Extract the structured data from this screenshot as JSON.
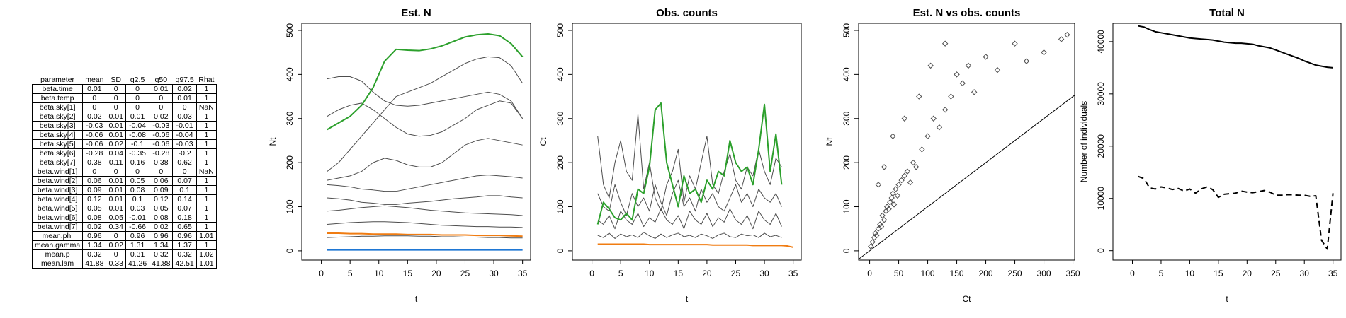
{
  "table": {
    "columns": [
      "parameter",
      "mean",
      "SD",
      "q2.5",
      "q50",
      "q97.5",
      "Rhat"
    ],
    "rows": [
      [
        "beta.time",
        "0.01",
        "0",
        "0",
        "0.01",
        "0.02",
        "1"
      ],
      [
        "beta.temp",
        "0",
        "0",
        "0",
        "0",
        "0.01",
        "1"
      ],
      [
        "beta.sky[1]",
        "0",
        "0",
        "0",
        "0",
        "0",
        "NaN"
      ],
      [
        "beta.sky[2]",
        "0.02",
        "0.01",
        "0.01",
        "0.02",
        "0.03",
        "1"
      ],
      [
        "beta.sky[3]",
        "-0.03",
        "0.01",
        "-0.04",
        "-0.03",
        "-0.01",
        "1"
      ],
      [
        "beta.sky[4]",
        "-0.06",
        "0.01",
        "-0.08",
        "-0.06",
        "-0.04",
        "1"
      ],
      [
        "beta.sky[5]",
        "-0.06",
        "0.02",
        "-0.1",
        "-0.06",
        "-0.03",
        "1"
      ],
      [
        "beta.sky[6]",
        "-0.28",
        "0.04",
        "-0.35",
        "-0.28",
        "-0.2",
        "1"
      ],
      [
        "beta.sky[7]",
        "0.38",
        "0.11",
        "0.16",
        "0.38",
        "0.62",
        "1"
      ],
      [
        "beta.wind[1]",
        "0",
        "0",
        "0",
        "0",
        "0",
        "NaN"
      ],
      [
        "beta.wind[2]",
        "0.06",
        "0.01",
        "0.05",
        "0.06",
        "0.07",
        "1"
      ],
      [
        "beta.wind[3]",
        "0.09",
        "0.01",
        "0.08",
        "0.09",
        "0.1",
        "1"
      ],
      [
        "beta.wind[4]",
        "0.12",
        "0.01",
        "0.1",
        "0.12",
        "0.14",
        "1"
      ],
      [
        "beta.wind[5]",
        "0.05",
        "0.01",
        "0.03",
        "0.05",
        "0.07",
        "1"
      ],
      [
        "beta.wind[6]",
        "0.08",
        "0.05",
        "-0.01",
        "0.08",
        "0.18",
        "1"
      ],
      [
        "beta.wind[7]",
        "0.02",
        "0.34",
        "-0.66",
        "0.02",
        "0.65",
        "1"
      ],
      [
        "mean.phi",
        "0.96",
        "0",
        "0.96",
        "0.96",
        "0.96",
        "1.01"
      ],
      [
        "mean.gamma",
        "1.34",
        "0.02",
        "1.31",
        "1.34",
        "1.37",
        "1"
      ],
      [
        "mean.p",
        "0.32",
        "0",
        "0.31",
        "0.32",
        "0.32",
        "1.02"
      ],
      [
        "mean.lam",
        "41.88",
        "0.33",
        "41.26",
        "41.88",
        "42.51",
        "1.01"
      ]
    ]
  },
  "chart_data": [
    {
      "type": "line",
      "title": "Est. N",
      "x_label": "t",
      "y_label": "Nt",
      "x": [
        1,
        3,
        5,
        7,
        9,
        11,
        13,
        15,
        17,
        19,
        21,
        23,
        25,
        27,
        29,
        31,
        33,
        35
      ],
      "xlim": [
        -3.4,
        36.4
      ],
      "xticks": [
        0,
        5,
        10,
        15,
        20,
        25,
        30,
        35
      ],
      "ylim": [
        -21,
        516
      ],
      "yticks": [
        0,
        100,
        200,
        300,
        400,
        500
      ],
      "series": [
        {
          "color": "#4d4d4d",
          "values": [
            390,
            395,
            395,
            385,
            360,
            340,
            330,
            328,
            330,
            335,
            340,
            345,
            350,
            355,
            360,
            355,
            340,
            300
          ]
        },
        {
          "color": "#4d4d4d",
          "values": [
            305,
            320,
            330,
            335,
            320,
            300,
            280,
            265,
            260,
            262,
            270,
            285,
            300,
            320,
            330,
            340,
            335,
            300
          ]
        },
        {
          "color": "#4d4d4d",
          "values": [
            180,
            200,
            230,
            260,
            290,
            320,
            350,
            360,
            370,
            380,
            395,
            410,
            425,
            435,
            440,
            438,
            420,
            380
          ]
        },
        {
          "color": "#4d4d4d",
          "values": [
            160,
            165,
            170,
            180,
            200,
            210,
            205,
            195,
            190,
            190,
            200,
            220,
            240,
            250,
            255,
            250,
            245,
            240
          ]
        },
        {
          "color": "#4d4d4d",
          "values": [
            150,
            148,
            145,
            140,
            138,
            135,
            135,
            140,
            145,
            150,
            155,
            160,
            165,
            170,
            172,
            170,
            168,
            165
          ]
        },
        {
          "color": "#4d4d4d",
          "values": [
            120,
            118,
            115,
            110,
            108,
            105,
            105,
            108,
            110,
            112,
            115,
            118,
            120,
            122,
            125,
            125,
            122,
            120
          ]
        },
        {
          "color": "#4d4d4d",
          "values": [
            90,
            92,
            95,
            98,
            100,
            102,
            100,
            98,
            95,
            92,
            90,
            88,
            86,
            85,
            84,
            83,
            82,
            80
          ]
        },
        {
          "color": "#4d4d4d",
          "values": [
            60,
            62,
            64,
            65,
            66,
            66,
            65,
            64,
            62,
            60,
            58,
            57,
            56,
            55,
            55,
            54,
            54,
            53
          ]
        },
        {
          "color": "#4d4d4d",
          "values": [
            30,
            31,
            32,
            33,
            33,
            34,
            34,
            34,
            33,
            33,
            32,
            32,
            31,
            31,
            30,
            30,
            29,
            29
          ]
        },
        {
          "color": "#2ca02c",
          "values": [
            275,
            290,
            305,
            330,
            370,
            430,
            457,
            455,
            454,
            458,
            465,
            475,
            485,
            490,
            492,
            488,
            470,
            440
          ]
        },
        {
          "color": "#1f77d4",
          "values": [
            2,
            2,
            2,
            2,
            2,
            2,
            2,
            2,
            2,
            2,
            2,
            2,
            2,
            2,
            2,
            2,
            2,
            2
          ]
        },
        {
          "color": "#f07c12",
          "values": [
            40,
            40,
            39,
            39,
            38,
            38,
            38,
            37,
            37,
            37,
            36,
            36,
            36,
            35,
            35,
            35,
            34,
            33
          ]
        }
      ]
    },
    {
      "type": "line",
      "title": "Obs. counts",
      "x_label": "t",
      "y_label": "Ct",
      "x": [
        1,
        2,
        3,
        4,
        5,
        6,
        7,
        8,
        9,
        10,
        11,
        12,
        13,
        14,
        15,
        16,
        17,
        18,
        19,
        20,
        21,
        22,
        23,
        24,
        25,
        26,
        27,
        28,
        29,
        30,
        31,
        32,
        33,
        34,
        35
      ],
      "xlim": [
        -3.4,
        36.4
      ],
      "xticks": [
        0,
        5,
        10,
        15,
        20,
        25,
        30,
        35
      ],
      "ylim": [
        -21,
        516
      ],
      "yticks": [
        0,
        100,
        200,
        300,
        400,
        500
      ],
      "series": [
        {
          "color": "#4d4d4d",
          "values": [
            260,
            150,
            120,
            200,
            250,
            180,
            160,
            310,
            140,
            200,
            120,
            90,
            150,
            180,
            230,
            110,
            170,
            140,
            200,
            260,
            150,
            130,
            180,
            220,
            160,
            140,
            190,
            170,
            230,
            180,
            150,
            210,
            190,
            null,
            null
          ]
        },
        {
          "color": "#4d4d4d",
          "values": [
            130,
            100,
            90,
            150,
            110,
            80,
            130,
            100,
            120,
            90,
            150,
            110,
            80,
            130,
            160,
            100,
            120,
            90,
            140,
            110,
            130,
            100,
            90,
            120,
            150,
            110,
            130,
            100,
            140,
            120,
            110,
            130,
            100,
            null,
            null
          ]
        },
        {
          "color": "#4d4d4d",
          "values": [
            70,
            60,
            80,
            50,
            90,
            70,
            60,
            85,
            55,
            75,
            65,
            95,
            70,
            60,
            80,
            50,
            90,
            70,
            60,
            85,
            55,
            75,
            65,
            95,
            70,
            60,
            80,
            50,
            90,
            70,
            60,
            85,
            55,
            null,
            null
          ]
        },
        {
          "color": "#4d4d4d",
          "values": [
            35,
            30,
            40,
            28,
            38,
            32,
            36,
            30,
            42,
            34,
            28,
            38,
            30,
            36,
            40,
            32,
            35,
            30,
            38,
            34,
            28,
            36,
            40,
            32,
            30,
            38,
            34,
            36,
            30,
            40,
            32,
            35,
            30,
            null,
            null
          ]
        },
        {
          "color": "#2ca02c",
          "values": [
            60,
            110,
            95,
            75,
            70,
            85,
            70,
            140,
            130,
            190,
            320,
            335,
            200,
            150,
            100,
            170,
            130,
            140,
            110,
            160,
            140,
            180,
            170,
            250,
            200,
            180,
            190,
            150,
            230,
            332,
            180,
            265,
            150,
            null,
            null
          ]
        },
        {
          "color": "#f07c12",
          "values": [
            15,
            15,
            15,
            15,
            15,
            15,
            15,
            15,
            15,
            14,
            14,
            14,
            14,
            14,
            14,
            14,
            14,
            14,
            14,
            14,
            13,
            13,
            13,
            13,
            13,
            13,
            13,
            12,
            12,
            12,
            12,
            12,
            12,
            11,
            8
          ]
        }
      ]
    },
    {
      "type": "scatter",
      "title": "Est. N vs obs. counts",
      "x_label": "Ct",
      "y_label": "Nt",
      "color": "#4d4d4d",
      "identity_line": true,
      "xlim": [
        -19,
        353
      ],
      "xticks": [
        0,
        50,
        100,
        150,
        200,
        250,
        300,
        350
      ],
      "ylim": [
        -21,
        516
      ],
      "yticks": [
        0,
        100,
        200,
        300,
        400,
        500
      ],
      "x": [
        2,
        5,
        8,
        10,
        12,
        15,
        18,
        20,
        22,
        25,
        28,
        30,
        33,
        35,
        38,
        40,
        42,
        45,
        48,
        50,
        55,
        60,
        65,
        70,
        75,
        80,
        90,
        100,
        110,
        120,
        130,
        140,
        150,
        160,
        170,
        180,
        200,
        220,
        250,
        270,
        300,
        330,
        340,
        15,
        25,
        40,
        60,
        85,
        105,
        130
      ],
      "values": [
        10,
        20,
        30,
        40,
        35,
        50,
        60,
        55,
        80,
        70,
        90,
        100,
        95,
        110,
        120,
        130,
        105,
        140,
        125,
        150,
        160,
        170,
        180,
        155,
        200,
        190,
        230,
        260,
        300,
        280,
        320,
        350,
        400,
        380,
        420,
        360,
        440,
        410,
        470,
        430,
        450,
        480,
        490,
        150,
        190,
        260,
        300,
        350,
        420,
        470
      ]
    },
    {
      "type": "line",
      "title": "Total N",
      "x_label": "t",
      "y_label": "Number of individuals",
      "x": [
        1,
        2,
        3,
        4,
        5,
        6,
        7,
        8,
        9,
        10,
        11,
        12,
        13,
        14,
        15,
        16,
        17,
        18,
        19,
        20,
        21,
        22,
        23,
        24,
        25,
        26,
        27,
        28,
        29,
        30,
        31,
        32,
        33,
        34,
        35
      ],
      "xlim": [
        -3.4,
        36.4
      ],
      "xticks": [
        0,
        5,
        10,
        15,
        20,
        25,
        30,
        35
      ],
      "ylim": [
        -1800,
        43500
      ],
      "yticks": [
        0,
        10000,
        20000,
        30000,
        40000
      ],
      "series": [
        {
          "color": "#000000",
          "linestyle": "solid",
          "values": [
            43000,
            42800,
            42300,
            41900,
            41700,
            41500,
            41300,
            41100,
            40900,
            40700,
            40600,
            40500,
            40400,
            40300,
            40100,
            39900,
            39800,
            39700,
            39700,
            39600,
            39500,
            39200,
            39000,
            38800,
            38400,
            38000,
            37600,
            37200,
            36800,
            36300,
            35900,
            35500,
            35300,
            35100,
            35000
          ]
        },
        {
          "color": "#000000",
          "linestyle": "dashed",
          "values": [
            14200,
            13800,
            12000,
            11800,
            12200,
            12000,
            11700,
            11900,
            11400,
            11800,
            11000,
            11800,
            12200,
            11700,
            10200,
            10800,
            10900,
            11000,
            11400,
            11200,
            11100,
            11300,
            11500,
            11200,
            10600,
            10600,
            10700,
            10700,
            10600,
            10600,
            10400,
            10500,
            2000,
            300,
            11000
          ]
        }
      ]
    }
  ]
}
